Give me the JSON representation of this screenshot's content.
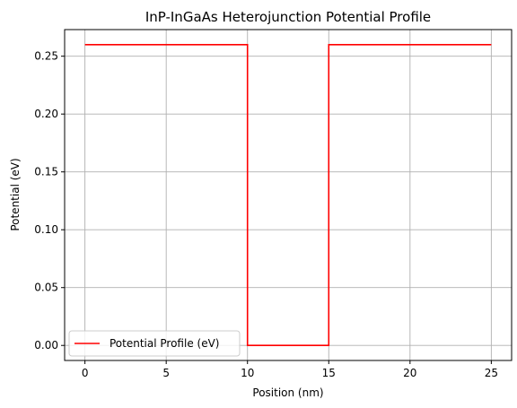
{
  "chart_data": {
    "type": "line",
    "title": "InP-InGaAs Heterojunction Potential Profile",
    "xlabel": "Position (nm)",
    "ylabel": "Potential (eV)",
    "xlim": [
      -1.25,
      26.25
    ],
    "ylim": [
      -0.013,
      0.273
    ],
    "xticks": [
      0,
      5,
      10,
      15,
      20,
      25
    ],
    "xtick_labels": [
      "0",
      "5",
      "10",
      "15",
      "20",
      "25"
    ],
    "yticks": [
      0.0,
      0.05,
      0.1,
      0.15,
      0.2,
      0.25
    ],
    "ytick_labels": [
      "0.00",
      "0.05",
      "0.10",
      "0.15",
      "0.20",
      "0.25"
    ],
    "grid": true,
    "legend_position": "lower-left",
    "series": [
      {
        "name": "Potential Profile (eV)",
        "color": "#ff0000",
        "x": [
          0,
          10,
          10,
          15,
          15,
          25
        ],
        "y": [
          0.26,
          0.26,
          0.0,
          0.0,
          0.26,
          0.26
        ]
      }
    ]
  }
}
